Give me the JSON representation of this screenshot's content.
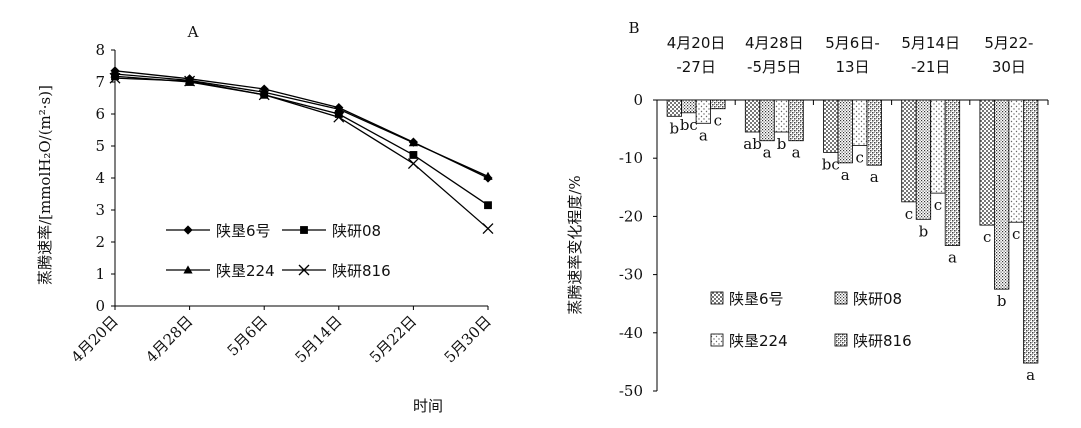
{
  "chart_data": [
    {
      "type": "line",
      "panel_label": "A",
      "ylabel": "蒸腾速率/[mmolH₂O/(m²·s)]",
      "xlabel": "时间",
      "ylim": [
        0,
        8
      ],
      "yticks": [
        "0",
        "1",
        "2",
        "3",
        "4",
        "5",
        "6",
        "7",
        "8"
      ],
      "categories": [
        "4月20日",
        "4月28日",
        "5月6日",
        "5月14日",
        "5月22日",
        "5月30日"
      ],
      "grid": false,
      "legend_position": "bottom-center",
      "series": [
        {
          "name": "陕垦6号",
          "marker": "diamond",
          "values": [
            7.35,
            7.1,
            6.78,
            6.2,
            5.12,
            4.0
          ]
        },
        {
          "name": "陕研08",
          "marker": "square",
          "values": [
            7.18,
            7.0,
            6.6,
            6.0,
            4.72,
            3.15
          ]
        },
        {
          "name": "陕垦224",
          "marker": "triangle",
          "values": [
            7.25,
            7.05,
            6.68,
            6.15,
            5.1,
            4.05
          ]
        },
        {
          "name": "陕研816",
          "marker": "x",
          "values": [
            7.12,
            7.03,
            6.6,
            5.9,
            4.45,
            2.42
          ]
        }
      ]
    },
    {
      "type": "bar",
      "panel_label": "B",
      "ylabel": "蒸腾速率变化程度/%",
      "xlabel": "",
      "ylim": [
        -50,
        0
      ],
      "yticks": [
        "0",
        "-10",
        "-20",
        "-30",
        "-40",
        "-50"
      ],
      "categories": [
        {
          "line1": "4月20日",
          "line2": "-27日"
        },
        {
          "line1": "4月28日",
          "line2": "-5月5日"
        },
        {
          "line1": "5月6日-",
          "line2": "13日"
        },
        {
          "line1": "5月14日",
          "line2": "-21日"
        },
        {
          "line1": "5月22-",
          "line2": "30日"
        }
      ],
      "grid": false,
      "legend_position": "bottom-center",
      "series": [
        {
          "name": "陕垦6号",
          "pattern": "p0",
          "values": [
            -2.8,
            -5.5,
            -9.0,
            -17.5,
            -21.5
          ],
          "labels": [
            "b",
            "ab",
            "bc",
            "c",
            "c"
          ]
        },
        {
          "name": "陕研08",
          "pattern": "p1",
          "values": [
            -2.2,
            -7.0,
            -10.8,
            -20.5,
            -32.5
          ],
          "labels": [
            "bc",
            "a",
            "a",
            "b",
            "b"
          ]
        },
        {
          "name": "陕垦224",
          "pattern": "p2",
          "values": [
            -4.0,
            -5.5,
            -7.8,
            -16.0,
            -21.0
          ],
          "labels": [
            "a",
            "b",
            "c",
            "c",
            "c"
          ]
        },
        {
          "name": "陕研816",
          "pattern": "p3",
          "values": [
            -1.5,
            -7.0,
            -11.2,
            -25.0,
            -45.2
          ],
          "labels": [
            "c",
            "a",
            "a",
            "a",
            "a"
          ]
        }
      ]
    }
  ]
}
